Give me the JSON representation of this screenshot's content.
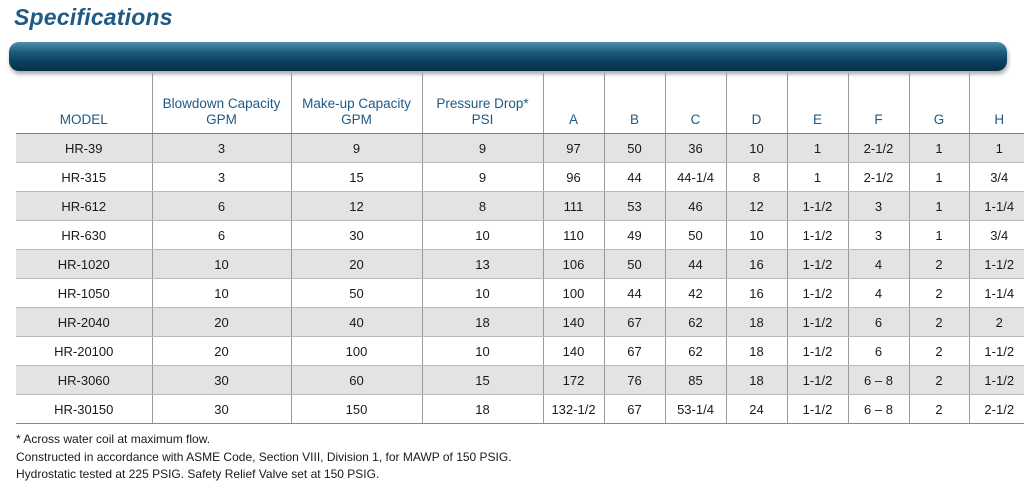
{
  "title": "Specifications",
  "columns": {
    "model": "MODEL",
    "blowdown": [
      "Blowdown Capacity",
      "GPM"
    ],
    "makeup": [
      "Make-up Capacity",
      "GPM"
    ],
    "pressure": [
      "Pressure Drop*",
      "PSI"
    ],
    "a": "A",
    "b": "B",
    "c": "C",
    "d": "D",
    "e": "E",
    "f": "F",
    "g": "G",
    "h": "H"
  },
  "rows": [
    {
      "model": "HR-39",
      "blowdown": "3",
      "makeup": "9",
      "pressure": "9",
      "a": "97",
      "b": "50",
      "c": "36",
      "d": "10",
      "e": "1",
      "f": "2-1/2",
      "g": "1",
      "h": "1"
    },
    {
      "model": "HR-315",
      "blowdown": "3",
      "makeup": "15",
      "pressure": "9",
      "a": "96",
      "b": "44",
      "c": "44-1/4",
      "d": "8",
      "e": "1",
      "f": "2-1/2",
      "g": "1",
      "h": "3/4"
    },
    {
      "model": "HR-612",
      "blowdown": "6",
      "makeup": "12",
      "pressure": "8",
      "a": "111",
      "b": "53",
      "c": "46",
      "d": "12",
      "e": "1-1/2",
      "f": "3",
      "g": "1",
      "h": "1-1/4"
    },
    {
      "model": "HR-630",
      "blowdown": "6",
      "makeup": "30",
      "pressure": "10",
      "a": "110",
      "b": "49",
      "c": "50",
      "d": "10",
      "e": "1-1/2",
      "f": "3",
      "g": "1",
      "h": "3/4"
    },
    {
      "model": "HR-1020",
      "blowdown": "10",
      "makeup": "20",
      "pressure": "13",
      "a": "106",
      "b": "50",
      "c": "44",
      "d": "16",
      "e": "1-1/2",
      "f": "4",
      "g": "2",
      "h": "1-1/2"
    },
    {
      "model": "HR-1050",
      "blowdown": "10",
      "makeup": "50",
      "pressure": "10",
      "a": "100",
      "b": "44",
      "c": "42",
      "d": "16",
      "e": "1-1/2",
      "f": "4",
      "g": "2",
      "h": "1-1/4"
    },
    {
      "model": "HR-2040",
      "blowdown": "20",
      "makeup": "40",
      "pressure": "18",
      "a": "140",
      "b": "67",
      "c": "62",
      "d": "18",
      "e": "1-1/2",
      "f": "6",
      "g": "2",
      "h": "2"
    },
    {
      "model": "HR-20100",
      "blowdown": "20",
      "makeup": "100",
      "pressure": "10",
      "a": "140",
      "b": "67",
      "c": "62",
      "d": "18",
      "e": "1-1/2",
      "f": "6",
      "g": "2",
      "h": "1-1/2"
    },
    {
      "model": "HR-3060",
      "blowdown": "30",
      "makeup": "60",
      "pressure": "15",
      "a": "172",
      "b": "76",
      "c": "85",
      "d": "18",
      "e": "1-1/2",
      "f": "6 – 8",
      "g": "2",
      "h": "1-1/2"
    },
    {
      "model": "HR-30150",
      "blowdown": "30",
      "makeup": "150",
      "pressure": "18",
      "a": "132-1/2",
      "b": "67",
      "c": "53-1/4",
      "d": "24",
      "e": "1-1/2",
      "f": "6 – 8",
      "g": "2",
      "h": "2-1/2"
    }
  ],
  "notes": [
    "* Across water coil at maximum flow.",
    "Constructed in accordance with ASME Code, Section VIII, Division 1, for MAWP of 150 PSIG.",
    "Hydrostatic tested at 225 PSIG. Safety Relief Valve set at 150 PSIG."
  ],
  "colors": {
    "title": "#1e5a86",
    "header_text": "#1e5a86",
    "banner_dark": "#0b3f5b",
    "row_shade": "#e3e3e3"
  }
}
